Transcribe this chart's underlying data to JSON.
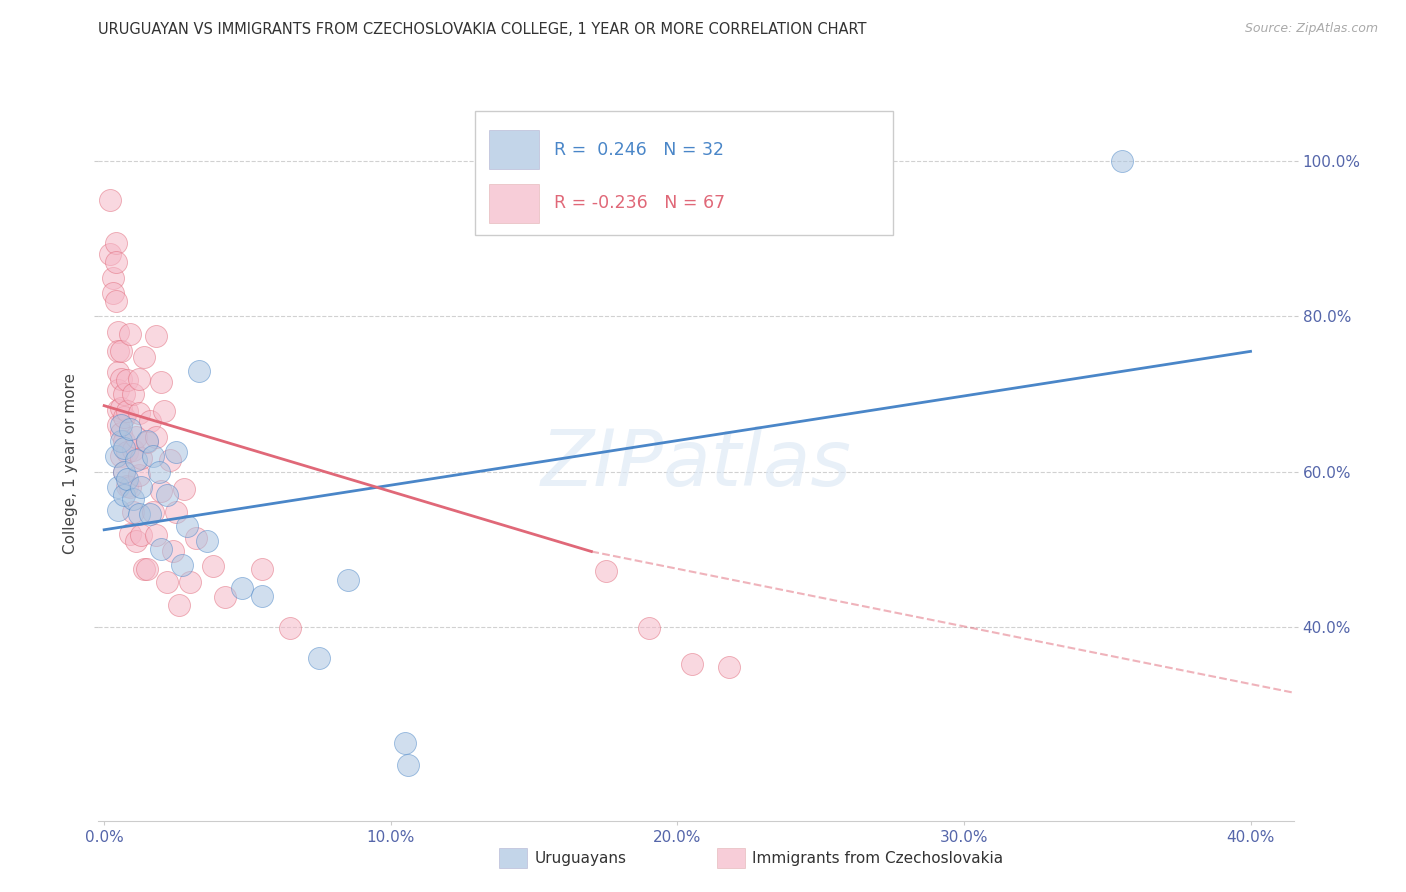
{
  "title": "URUGUAYAN VS IMMIGRANTS FROM CZECHOSLOVAKIA COLLEGE, 1 YEAR OR MORE CORRELATION CHART",
  "source": "Source: ZipAtlas.com",
  "ylabel": "College, 1 year or more",
  "legend_label1": "Uruguayans",
  "legend_label2": "Immigrants from Czechoslovakia",
  "R1": "0.246",
  "N1": "32",
  "R2": "-0.236",
  "N2": "67",
  "xlim": [
    -0.002,
    0.415
  ],
  "ylim": [
    0.15,
    1.07
  ],
  "yticks": [
    0.4,
    0.6,
    0.8,
    1.0
  ],
  "xticks": [
    0.0,
    0.1,
    0.2,
    0.3,
    0.4
  ],
  "color_blue": "#aac4e0",
  "color_pink": "#f5b8c8",
  "color_blue_line": "#4a86c8",
  "color_pink_line": "#e06878",
  "color_rn_blue": "#4a86c8",
  "color_rn_pink": "#e06878",
  "watermark": "ZIPatlas",
  "blue_scatter": [
    [
      0.004,
      0.62
    ],
    [
      0.005,
      0.58
    ],
    [
      0.005,
      0.55
    ],
    [
      0.006,
      0.64
    ],
    [
      0.006,
      0.66
    ],
    [
      0.007,
      0.6
    ],
    [
      0.007,
      0.57
    ],
    [
      0.007,
      0.63
    ],
    [
      0.008,
      0.59
    ],
    [
      0.009,
      0.655
    ],
    [
      0.01,
      0.565
    ],
    [
      0.011,
      0.615
    ],
    [
      0.012,
      0.545
    ],
    [
      0.013,
      0.58
    ],
    [
      0.015,
      0.64
    ],
    [
      0.016,
      0.545
    ],
    [
      0.017,
      0.62
    ],
    [
      0.019,
      0.6
    ],
    [
      0.02,
      0.5
    ],
    [
      0.022,
      0.57
    ],
    [
      0.025,
      0.625
    ],
    [
      0.027,
      0.48
    ],
    [
      0.029,
      0.53
    ],
    [
      0.033,
      0.73
    ],
    [
      0.036,
      0.51
    ],
    [
      0.048,
      0.45
    ],
    [
      0.055,
      0.44
    ],
    [
      0.075,
      0.36
    ],
    [
      0.085,
      0.46
    ],
    [
      0.105,
      0.25
    ],
    [
      0.106,
      0.222
    ],
    [
      0.355,
      1.0
    ]
  ],
  "pink_scatter": [
    [
      0.002,
      0.95
    ],
    [
      0.002,
      0.88
    ],
    [
      0.003,
      0.85
    ],
    [
      0.003,
      0.83
    ],
    [
      0.004,
      0.895
    ],
    [
      0.004,
      0.87
    ],
    [
      0.004,
      0.82
    ],
    [
      0.005,
      0.78
    ],
    [
      0.005,
      0.755
    ],
    [
      0.005,
      0.728
    ],
    [
      0.005,
      0.705
    ],
    [
      0.005,
      0.68
    ],
    [
      0.005,
      0.66
    ],
    [
      0.006,
      0.72
    ],
    [
      0.006,
      0.682
    ],
    [
      0.006,
      0.65
    ],
    [
      0.006,
      0.62
    ],
    [
      0.006,
      0.755
    ],
    [
      0.007,
      0.7
    ],
    [
      0.007,
      0.64
    ],
    [
      0.007,
      0.6
    ],
    [
      0.007,
      0.67
    ],
    [
      0.008,
      0.625
    ],
    [
      0.008,
      0.582
    ],
    [
      0.008,
      0.718
    ],
    [
      0.008,
      0.678
    ],
    [
      0.009,
      0.58
    ],
    [
      0.009,
      0.52
    ],
    [
      0.009,
      0.778
    ],
    [
      0.01,
      0.7
    ],
    [
      0.01,
      0.628
    ],
    [
      0.01,
      0.548
    ],
    [
      0.011,
      0.645
    ],
    [
      0.011,
      0.51
    ],
    [
      0.012,
      0.675
    ],
    [
      0.012,
      0.595
    ],
    [
      0.012,
      0.72
    ],
    [
      0.013,
      0.618
    ],
    [
      0.013,
      0.518
    ],
    [
      0.014,
      0.475
    ],
    [
      0.014,
      0.748
    ],
    [
      0.015,
      0.638
    ],
    [
      0.015,
      0.475
    ],
    [
      0.016,
      0.665
    ],
    [
      0.017,
      0.548
    ],
    [
      0.018,
      0.775
    ],
    [
      0.018,
      0.645
    ],
    [
      0.018,
      0.518
    ],
    [
      0.02,
      0.715
    ],
    [
      0.02,
      0.575
    ],
    [
      0.021,
      0.678
    ],
    [
      0.022,
      0.458
    ],
    [
      0.023,
      0.615
    ],
    [
      0.024,
      0.498
    ],
    [
      0.025,
      0.548
    ],
    [
      0.026,
      0.428
    ],
    [
      0.028,
      0.578
    ],
    [
      0.03,
      0.458
    ],
    [
      0.032,
      0.515
    ],
    [
      0.038,
      0.478
    ],
    [
      0.042,
      0.438
    ],
    [
      0.055,
      0.475
    ],
    [
      0.065,
      0.398
    ],
    [
      0.175,
      0.472
    ],
    [
      0.19,
      0.398
    ],
    [
      0.205,
      0.352
    ],
    [
      0.218,
      0.348
    ]
  ],
  "blue_line": {
    "x0": 0.0,
    "x1": 0.4,
    "y0": 0.525,
    "y1": 0.755
  },
  "pink_line_solid_x0": 0.0,
  "pink_line_solid_x1": 0.17,
  "pink_line_solid_y0": 0.685,
  "pink_line_solid_y1": 0.497,
  "pink_line_dash_x0": 0.17,
  "pink_line_dash_x1": 0.415,
  "pink_line_dash_y0": 0.497,
  "pink_line_dash_y1": 0.315
}
